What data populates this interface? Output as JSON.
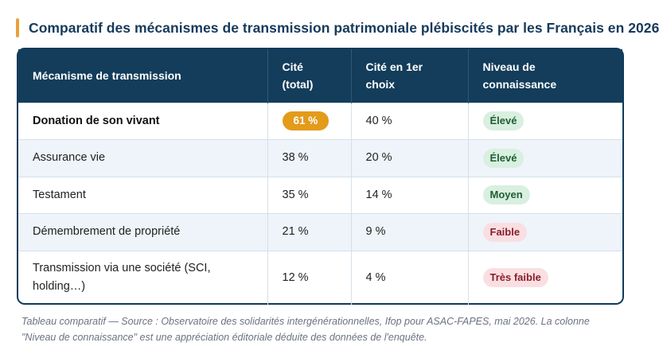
{
  "title": "Comparatif des mécanismes de transmission patrimoniale plébiscités par les Français en 2026",
  "colors": {
    "accent": "#e8a23a",
    "header_bg": "#133d5b",
    "highlight_pill": "#e39b1a",
    "badge_green": "#d9efe0",
    "badge_red": "#f9dfe2"
  },
  "table": {
    "headers": [
      "Mécanisme de transmission",
      "Cité (total)",
      "Cité en 1er choix",
      "Niveau de connaissance"
    ],
    "rows": [
      {
        "mechanism": "Donation de son vivant",
        "cited_total": "61 %",
        "cited_first": "40 %",
        "knowledge": "Élevé",
        "level": "high"
      },
      {
        "mechanism": "Assurance vie",
        "cited_total": "38 %",
        "cited_first": "20 %",
        "knowledge": "Élevé",
        "level": "high"
      },
      {
        "mechanism": "Testament",
        "cited_total": "35 %",
        "cited_first": "14 %",
        "knowledge": "Moyen",
        "level": "mid"
      },
      {
        "mechanism": "Démembrement de propriété",
        "cited_total": "21 %",
        "cited_first": "9 %",
        "knowledge": "Faible",
        "level": "low"
      },
      {
        "mechanism": "Transmission via une société (SCI, holding…)",
        "cited_total": "12 %",
        "cited_first": "4 %",
        "knowledge": "Très faible",
        "level": "low"
      }
    ]
  },
  "caption": "Tableau comparatif — Source : Observatoire des solidarités intergénérationnelles, Ifop pour ASAC-FAPES, mai 2026. La colonne \"Niveau de connaissance\" est une appréciation éditoriale déduite des données de l'enquête."
}
